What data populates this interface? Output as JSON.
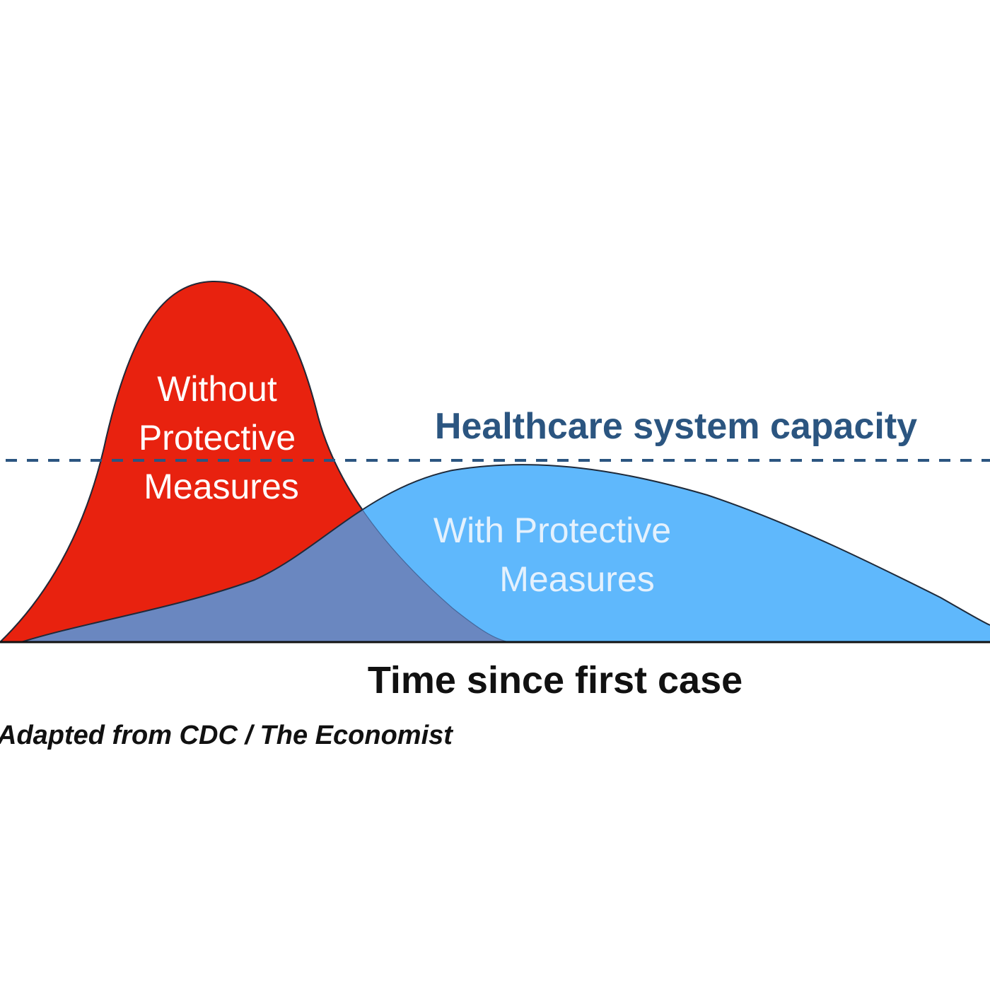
{
  "chart_data": {
    "type": "area",
    "title": "",
    "xlabel": "Time since first case",
    "ylabel": "",
    "x_ticks_shown": false,
    "y_ticks_shown": false,
    "grid": false,
    "legend": "none",
    "series": [
      {
        "name": "Without Protective Measures",
        "label_lines": [
          "Without",
          "Protective",
          "Measures"
        ],
        "color": "#e8220f",
        "shape": "tall narrow early peak"
      },
      {
        "name": "With Protective Measures",
        "label_lines": [
          "With Protective",
          "Measures"
        ],
        "color": "#5fb8fc",
        "shape": "low wide later peak"
      }
    ],
    "overlap_color": "#6a87c0",
    "reference_line": {
      "label": "Healthcare system capacity",
      "style": "dashed",
      "color": "#2b5580"
    },
    "annotations": [
      "Adapted from CDC / The Economist"
    ]
  }
}
